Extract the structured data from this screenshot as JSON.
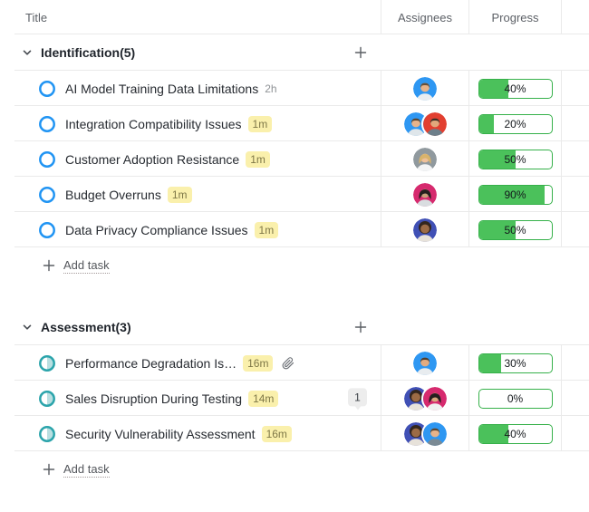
{
  "header": {
    "columns": [
      "Title",
      "Assignees",
      "Progress"
    ]
  },
  "ui": {
    "add_task_label": "Add task"
  },
  "colors": {
    "progress_fill": "#4bc15b",
    "progress_border": "#36b14a",
    "badge_bg": "#faf0ac",
    "badge_text": "#7e7747",
    "status_open": "#2094f3",
    "status_in_progress_ring": "#2ba4ab",
    "status_in_progress_fill": "#b9dfe1",
    "row_border": "#eaeaea"
  },
  "groups": [
    {
      "label": "Identification(5)",
      "name": "Identification",
      "count": 5,
      "status": "open",
      "tasks": [
        {
          "title": "AI Model Training Data Limitations",
          "time": {
            "text": "2h",
            "highlight": false
          },
          "progress": {
            "value": 40,
            "label": "40%"
          },
          "assignees": [
            {
              "name": "man-glasses-blue",
              "type": "man",
              "bg": "#2e97f2",
              "skin": "#e7b38a",
              "hair": "#68503a",
              "shirt": "#e9edf0"
            }
          ]
        },
        {
          "title": "Integration Compatibility Issues",
          "time": {
            "text": "1m",
            "highlight": true
          },
          "progress": {
            "value": 20,
            "label": "20%"
          },
          "assignees": [
            {
              "name": "man-blue",
              "type": "man",
              "bg": "#2e97f2",
              "skin": "#e7b38a",
              "hair": "#5a4632",
              "shirt": "#dfe6ea"
            },
            {
              "name": "man-red",
              "type": "man",
              "bg": "#e23f30",
              "skin": "#e2a87c",
              "hair": "#3c2f26",
              "shirt": "#6d7f8a"
            }
          ]
        },
        {
          "title": "Customer Adoption Resistance",
          "time": {
            "text": "1m",
            "highlight": true
          },
          "progress": {
            "value": 50,
            "label": "50%"
          },
          "assignees": [
            {
              "name": "woman-blonde-gray",
              "type": "woman",
              "bg": "#90999e",
              "skin": "#eec09a",
              "hair": "#d8b36b",
              "shirt": "#f3f4f5"
            }
          ]
        },
        {
          "title": "Budget Overruns",
          "time": {
            "text": "1m",
            "highlight": true
          },
          "progress": {
            "value": 90,
            "label": "90%"
          },
          "assignees": [
            {
              "name": "woman-pink",
              "type": "woman",
              "bg": "#d62a6e",
              "skin": "#caa07b",
              "hair": "#241f1e",
              "shirt": "#d9dde0"
            }
          ]
        },
        {
          "title": "Data Privacy Compliance Issues",
          "time": {
            "text": "1m",
            "highlight": true
          },
          "progress": {
            "value": 50,
            "label": "50%"
          },
          "assignees": [
            {
              "name": "woman-afro-indigo",
              "type": "afro",
              "bg": "#4050b5",
              "skin": "#9c6b45",
              "hair": "#33261d",
              "shirt": "#e7e2da"
            }
          ]
        }
      ]
    },
    {
      "label": "Assessment(3)",
      "name": "Assessment",
      "count": 3,
      "status": "in-progress",
      "tasks": [
        {
          "title": "Performance Degradation Is…",
          "time": {
            "text": "16m",
            "highlight": true
          },
          "attachment": true,
          "progress": {
            "value": 30,
            "label": "30%"
          },
          "assignees": [
            {
              "name": "man-blue-beard",
              "type": "man",
              "bg": "#2e97f2",
              "skin": "#e2ab80",
              "hair": "#4e3d2e",
              "shirt": "#e8ecef"
            }
          ]
        },
        {
          "title": "Sales Disruption During Testing",
          "time": {
            "text": "14m",
            "highlight": true
          },
          "comments": "1",
          "progress": {
            "value": 0,
            "label": "0%"
          },
          "assignees": [
            {
              "name": "woman-afro-indigo",
              "type": "afro",
              "bg": "#4050b5",
              "skin": "#9c6b45",
              "hair": "#33261d",
              "shirt": "#e7e2da"
            },
            {
              "name": "woman-pink-2",
              "type": "woman",
              "bg": "#d62a6e",
              "skin": "#d8a87e",
              "hair": "#241f1e",
              "shirt": "#f0f0f0"
            }
          ]
        },
        {
          "title": "Security Vulnerability Assessment",
          "time": {
            "text": "16m",
            "highlight": true
          },
          "progress": {
            "value": 40,
            "label": "40%"
          },
          "assignees": [
            {
              "name": "woman-afro-indigo",
              "type": "afro",
              "bg": "#4050b5",
              "skin": "#9c6b45",
              "hair": "#33261d",
              "shirt": "#e7e2da"
            },
            {
              "name": "man-glasses-blue-2",
              "type": "man",
              "bg": "#2e97f2",
              "skin": "#e7b38a",
              "hair": "#5d4731",
              "shirt": "#7b8a94"
            }
          ]
        }
      ]
    }
  ]
}
